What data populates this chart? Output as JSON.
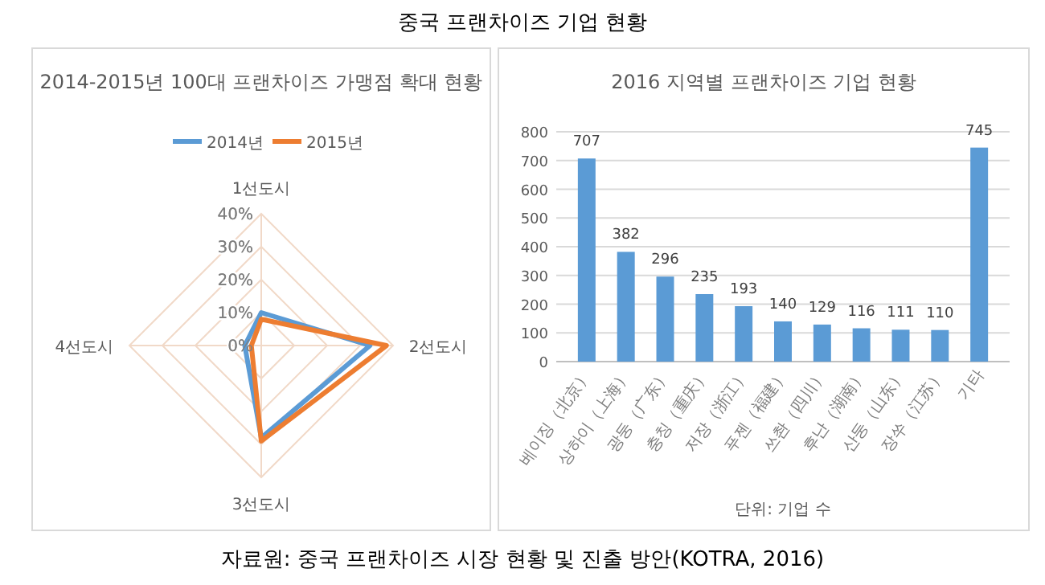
{
  "chart_data": [
    {
      "type": "radar",
      "title": "2014-2015년 100대 프랜차이즈 가맹점 확대 현황",
      "annotations": [
        "중국 프랜차이즈 기업 현황"
      ],
      "categories": [
        "1선도시",
        "2선도시",
        "3선도시",
        "4선도시"
      ],
      "series": [
        {
          "name": "2014년",
          "color": "#5b9bd5",
          "values": [
            10,
            33,
            28,
            5
          ]
        },
        {
          "name": "2015년",
          "color": "#ed7d31",
          "values": [
            8,
            38,
            29,
            3
          ]
        }
      ],
      "ylim": [
        0,
        40
      ],
      "yticks": [
        {
          "value": 0,
          "label": "0%"
        },
        {
          "value": 10,
          "label": "10%"
        },
        {
          "value": 20,
          "label": "20%"
        },
        {
          "value": 30,
          "label": "30%"
        },
        {
          "value": 40,
          "label": "40%"
        }
      ],
      "grid": true,
      "legend": "top",
      "line_style": "solid",
      "marker": "none"
    },
    {
      "type": "bar",
      "title": "2016 지역별 프랜차이즈 기업 현황",
      "xlabel": "단위: 기업 수",
      "annotations": [
        "자료원: 중국 프랜차이즈 시장 현황 및 진출 방안(KOTRA, 2016)"
      ],
      "categories": [
        "베이징（北京）",
        "상하이（上海）",
        "광둥（广东）",
        "충칭（重庆）",
        "저장（浙江）",
        "푸젠（福建）",
        "쓰촨（四川）",
        "후난（湖南）",
        "산둥（山东）",
        "장쑤（江苏）",
        "기타"
      ],
      "values": [
        707,
        382,
        296,
        235,
        193,
        140,
        129,
        116,
        111,
        110,
        745
      ],
      "color": "#5b9bd5",
      "ylim": [
        0,
        800
      ],
      "yticks": [
        0,
        100,
        200,
        300,
        400,
        500,
        600,
        700,
        800
      ],
      "grid": "y",
      "data_labels": true
    }
  ]
}
